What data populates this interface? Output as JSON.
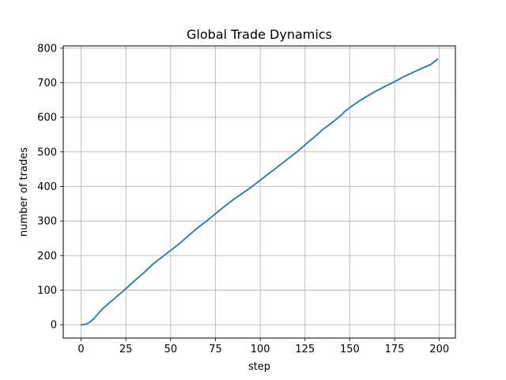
{
  "chart_data": {
    "type": "line",
    "title": "Global Trade Dynamics",
    "xlabel": "step",
    "ylabel": "number of trades",
    "xlim": [
      -9.95,
      208.95
    ],
    "ylim": [
      -38.4,
      806.4
    ],
    "xticks": [
      0,
      25,
      50,
      75,
      100,
      125,
      150,
      175,
      200
    ],
    "yticks": [
      0,
      100,
      200,
      300,
      400,
      500,
      600,
      700,
      800
    ],
    "grid": true,
    "line_color": "#1f77b4",
    "series": [
      {
        "x": [
          0,
          2,
          3,
          5,
          7,
          10,
          12,
          15,
          20,
          25,
          30,
          35,
          40,
          45,
          50,
          55,
          60,
          65,
          70,
          75,
          80,
          85,
          90,
          95,
          100,
          105,
          110,
          115,
          120,
          125,
          130,
          135,
          140,
          145,
          147,
          150,
          155,
          160,
          165,
          170,
          175,
          180,
          185,
          190,
          195,
          199
        ],
        "y": [
          0,
          1,
          2,
          8,
          17,
          35,
          46,
          60,
          82,
          104,
          128,
          150,
          175,
          195,
          215,
          235,
          258,
          280,
          300,
          321,
          342,
          362,
          380,
          398,
          418,
          438,
          458,
          478,
          498,
          520,
          542,
          565,
          584,
          605,
          616,
          628,
          646,
          662,
          677,
          690,
          703,
          717,
          729,
          741,
          752,
          768
        ]
      }
    ]
  }
}
